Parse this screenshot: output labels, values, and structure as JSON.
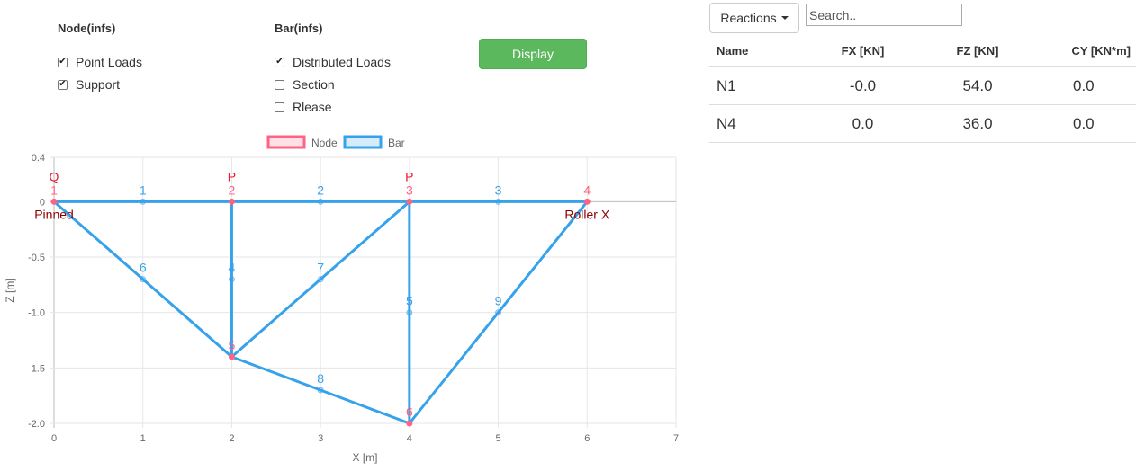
{
  "controls": {
    "node_title": "Node(infs)",
    "node_options": [
      {
        "label": "Point Loads",
        "checked": true
      },
      {
        "label": "Support",
        "checked": true
      }
    ],
    "bar_title": "Bar(infs)",
    "bar_options": [
      {
        "label": "Distributed Loads",
        "checked": true
      },
      {
        "label": "Section",
        "checked": false
      },
      {
        "label": "Rlease",
        "checked": false
      }
    ],
    "display_label": "Display"
  },
  "reactions": {
    "dropdown_label": "Reactions",
    "search_placeholder": "Search..",
    "columns": [
      "Name",
      "FX [KN]",
      "FZ [KN]",
      "CY [KN*m]"
    ],
    "rows": [
      [
        "N1",
        "-0.0",
        "54.0",
        "0.0"
      ],
      [
        "N4",
        "0.0",
        "36.0",
        "0.0"
      ]
    ]
  },
  "chart_data": {
    "type": "scatter",
    "xlabel": "X [m]",
    "ylabel": "Z [m]",
    "xlim": [
      0,
      7
    ],
    "ylim": [
      -2.0,
      0.4
    ],
    "x_ticks": [
      "0",
      "1",
      "2",
      "3",
      "4",
      "5",
      "6",
      "7"
    ],
    "y_ticks": [
      "0.4",
      "0",
      "-0.5",
      "-1.0",
      "-1.5",
      "-2.0"
    ],
    "legend": [
      {
        "name": "Node",
        "color": "#ff6384"
      },
      {
        "name": "Bar",
        "color": "#36a2eb"
      }
    ],
    "legend_position": "top",
    "grid": true,
    "nodes": [
      {
        "id": "1",
        "x": 0,
        "z": 0
      },
      {
        "id": "2",
        "x": 2,
        "z": 0
      },
      {
        "id": "3",
        "x": 4,
        "z": 0
      },
      {
        "id": "4",
        "x": 6,
        "z": 0
      },
      {
        "id": "5",
        "x": 2,
        "z": -1.4
      },
      {
        "id": "6",
        "x": 4,
        "z": -2.0
      }
    ],
    "bars": [
      {
        "id": "1",
        "from": "1",
        "to": "2"
      },
      {
        "id": "2",
        "from": "2",
        "to": "3"
      },
      {
        "id": "3",
        "from": "3",
        "to": "4"
      },
      {
        "id": "4",
        "from": "2",
        "to": "5"
      },
      {
        "id": "5",
        "from": "3",
        "to": "6"
      },
      {
        "id": "6",
        "from": "1",
        "to": "5"
      },
      {
        "id": "7",
        "from": "5",
        "to": "3"
      },
      {
        "id": "8",
        "from": "5",
        "to": "6"
      },
      {
        "id": "9",
        "from": "6",
        "to": "4"
      }
    ],
    "point_loads": [
      {
        "node": "1",
        "label": "Q"
      },
      {
        "node": "2",
        "label": "P"
      },
      {
        "node": "3",
        "label": "P"
      }
    ],
    "supports": [
      {
        "node": "1",
        "label": "Pinned"
      },
      {
        "node": "4",
        "label": "Roller X"
      }
    ],
    "colors": {
      "node": "#ff6384",
      "bar": "#36a2eb",
      "support": "#8b0000"
    }
  }
}
